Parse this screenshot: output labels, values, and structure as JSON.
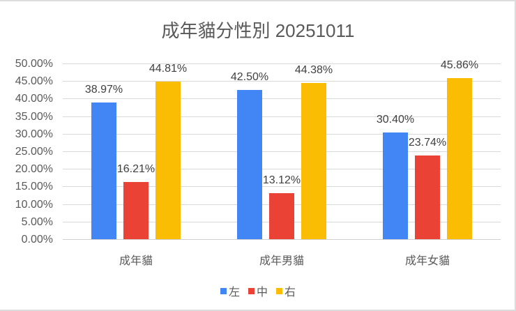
{
  "chart_data": {
    "type": "bar",
    "title": "成年貓分性別 20251011",
    "xlabel": "",
    "ylabel": "",
    "categories": [
      "成年貓",
      "成年男貓",
      "成年女貓"
    ],
    "series": [
      {
        "name": "左",
        "color": "#4285F4",
        "values": [
          38.97,
          42.5,
          30.4
        ],
        "labels": [
          "38.97%",
          "42.50%",
          "30.40%"
        ]
      },
      {
        "name": "中",
        "color": "#EA4335",
        "values": [
          16.21,
          13.12,
          23.74
        ],
        "labels": [
          "16.21%",
          "13.12%",
          "23.74%"
        ]
      },
      {
        "name": "右",
        "color": "#FBBC04",
        "values": [
          44.81,
          44.38,
          45.86
        ],
        "labels": [
          "44.81%",
          "44.38%",
          "45.86%"
        ]
      }
    ],
    "ylim": [
      0,
      50
    ],
    "yticks": [
      "0.00%",
      "5.00%",
      "10.00%",
      "15.00%",
      "20.00%",
      "25.00%",
      "30.00%",
      "35.00%",
      "40.00%",
      "45.00%",
      "50.00%"
    ],
    "grid": true,
    "legend_position": "bottom"
  }
}
